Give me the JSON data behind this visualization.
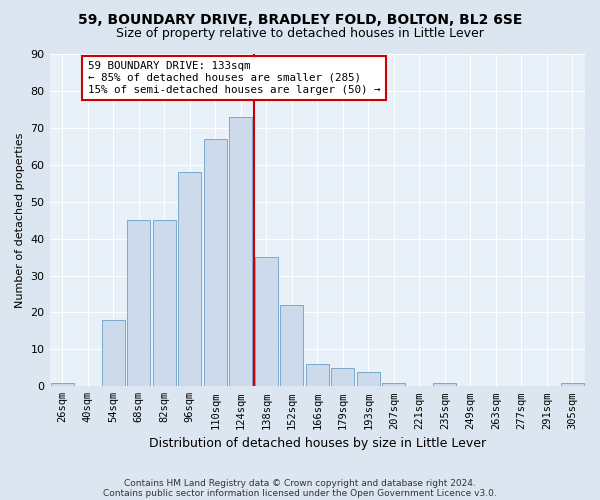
{
  "title": "59, BOUNDARY DRIVE, BRADLEY FOLD, BOLTON, BL2 6SE",
  "subtitle": "Size of property relative to detached houses in Little Lever",
  "xlabel": "Distribution of detached houses by size in Little Lever",
  "ylabel": "Number of detached properties",
  "bar_labels": [
    "26sqm",
    "40sqm",
    "54sqm",
    "68sqm",
    "82sqm",
    "96sqm",
    "110sqm",
    "124sqm",
    "138sqm",
    "152sqm",
    "166sqm",
    "179sqm",
    "193sqm",
    "207sqm",
    "221sqm",
    "235sqm",
    "249sqm",
    "263sqm",
    "277sqm",
    "291sqm",
    "305sqm"
  ],
  "bar_heights": [
    1,
    0,
    18,
    45,
    45,
    58,
    67,
    73,
    35,
    22,
    6,
    5,
    4,
    1,
    0,
    1,
    0,
    0,
    0,
    0,
    1
  ],
  "bar_color": "#ccdaeb",
  "bar_edge_color": "#7aaace",
  "vline_x": 7.5,
  "vline_color": "#cc0000",
  "annotation_title": "59 BOUNDARY DRIVE: 133sqm",
  "annotation_line1": "← 85% of detached houses are smaller (285)",
  "annotation_line2": "15% of semi-detached houses are larger (50) →",
  "annotation_box_color": "#cc0000",
  "annotation_bg": "#ffffff",
  "ylim": [
    0,
    90
  ],
  "yticks": [
    0,
    10,
    20,
    30,
    40,
    50,
    60,
    70,
    80,
    90
  ],
  "bg_color": "#dce6f0",
  "plot_bg_color": "#e8f0f8",
  "footer1": "Contains HM Land Registry data © Crown copyright and database right 2024.",
  "footer2": "Contains public sector information licensed under the Open Government Licence v3.0.",
  "title_fontsize": 10,
  "subtitle_fontsize": 9
}
